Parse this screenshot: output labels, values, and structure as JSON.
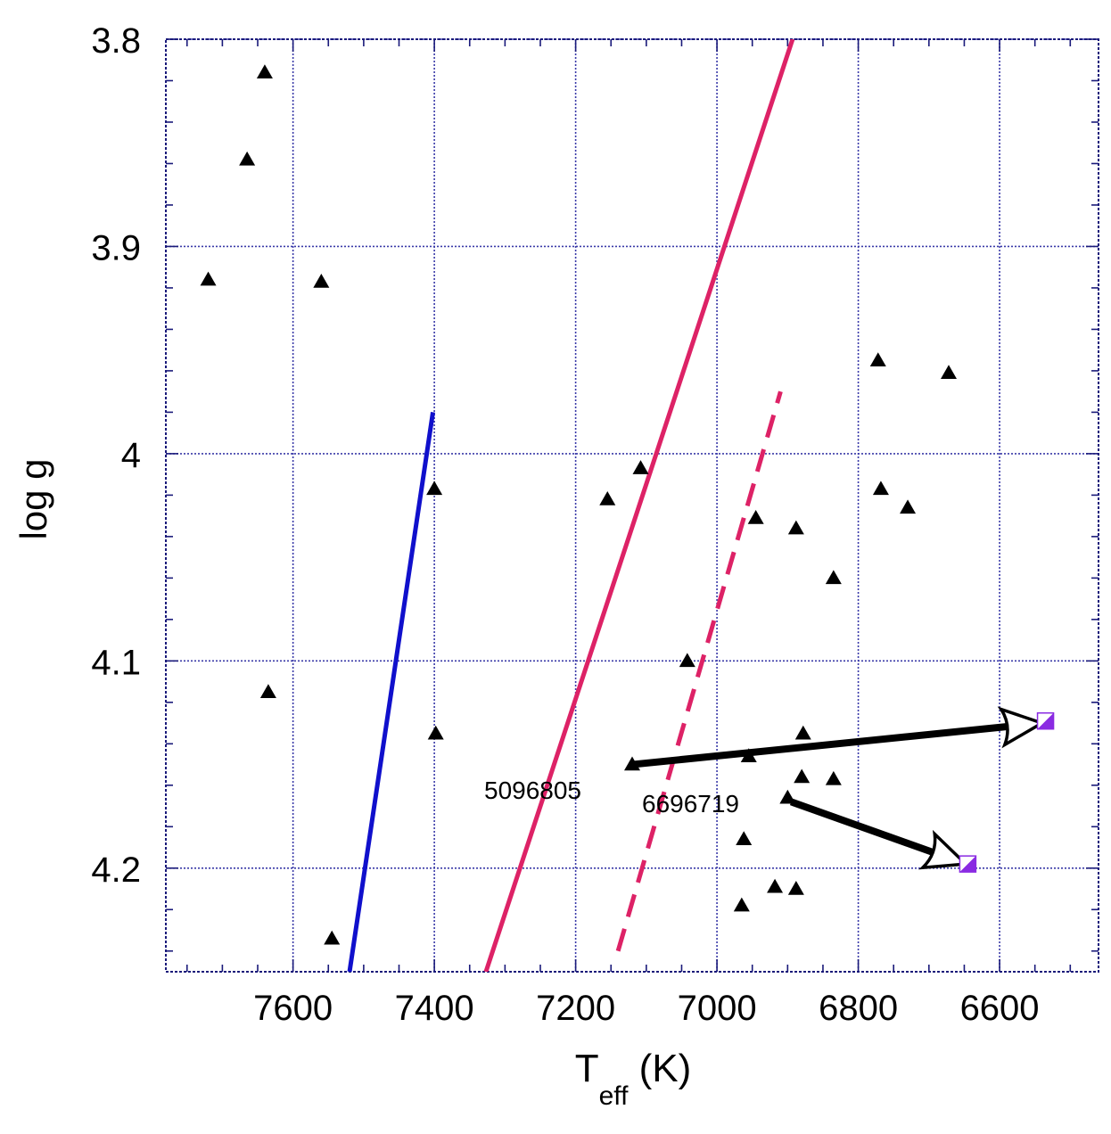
{
  "chart_data": {
    "type": "scatter",
    "xlabel": {
      "main": "T",
      "sub": "eff",
      "unit": " (K)"
    },
    "ylabel": "log g",
    "xlim": [
      7780,
      6460
    ],
    "ylim": [
      3.8,
      4.25
    ],
    "x_reversed": true,
    "y_reversed": true,
    "grid": true,
    "x_major_ticks": [
      7600,
      7400,
      7200,
      7000,
      6800,
      6600
    ],
    "x_tick_labels": [
      "7600",
      "7400",
      "7200",
      "7000",
      "6800",
      "6600"
    ],
    "y_major_ticks": [
      3.8,
      3.9,
      4.0,
      4.1,
      4.2
    ],
    "y_tick_labels": [
      "3.8",
      "3.9",
      "4",
      "4.1",
      "4.2"
    ],
    "x_minor_step": 50,
    "y_minor_step": 0.02,
    "series": [
      {
        "marker": "triangle",
        "color": "#000000",
        "points": [
          [
            7640,
            3.816
          ],
          [
            7665,
            3.858
          ],
          [
            7720,
            3.916
          ],
          [
            7560,
            3.917
          ],
          [
            7635,
            4.115
          ],
          [
            7545,
            4.234
          ],
          [
            7400,
            4.017
          ],
          [
            7398,
            4.135
          ],
          [
            7155,
            4.022
          ],
          [
            7108,
            4.007
          ],
          [
            7042,
            4.1
          ],
          [
            6945,
            4.031
          ],
          [
            6888,
            4.036
          ],
          [
            6835,
            4.06
          ],
          [
            6772,
            3.955
          ],
          [
            6768,
            4.017
          ],
          [
            6730,
            4.026
          ],
          [
            6672,
            3.961
          ],
          [
            6878,
            4.135
          ],
          [
            6955,
            4.146
          ],
          [
            7120,
            4.15
          ],
          [
            6880,
            4.156
          ],
          [
            6835,
            4.157
          ],
          [
            6900,
            4.166
          ],
          [
            6962,
            4.186
          ],
          [
            6918,
            4.209
          ],
          [
            6888,
            4.21
          ],
          [
            6965,
            4.218
          ]
        ]
      }
    ],
    "lines": [
      {
        "color": "#1010cc",
        "style": "solid",
        "points": [
          [
            7520,
            4.25
          ],
          [
            7402,
            3.98
          ]
        ]
      },
      {
        "color": "#dd2266",
        "style": "solid",
        "points": [
          [
            7327,
            4.25
          ],
          [
            6893,
            3.8
          ]
        ]
      },
      {
        "color": "#dd2266",
        "style": "dashed",
        "points": [
          [
            7140,
            4.24
          ],
          [
            6910,
            3.97
          ]
        ]
      }
    ],
    "arrows": [
      {
        "label": "5096805",
        "from": [
          7120,
          4.15
        ],
        "to": [
          6540,
          4.13
        ]
      },
      {
        "label": "6696719",
        "from": [
          6895,
          4.168
        ],
        "to": [
          6648,
          4.198
        ]
      }
    ],
    "end_markers": [
      {
        "shape": "square-half-filled",
        "color": "#8a2be2",
        "at": [
          6535,
          4.129
        ]
      },
      {
        "shape": "square-half-filled",
        "color": "#8a2be2",
        "at": [
          6645,
          4.198
        ]
      }
    ]
  }
}
